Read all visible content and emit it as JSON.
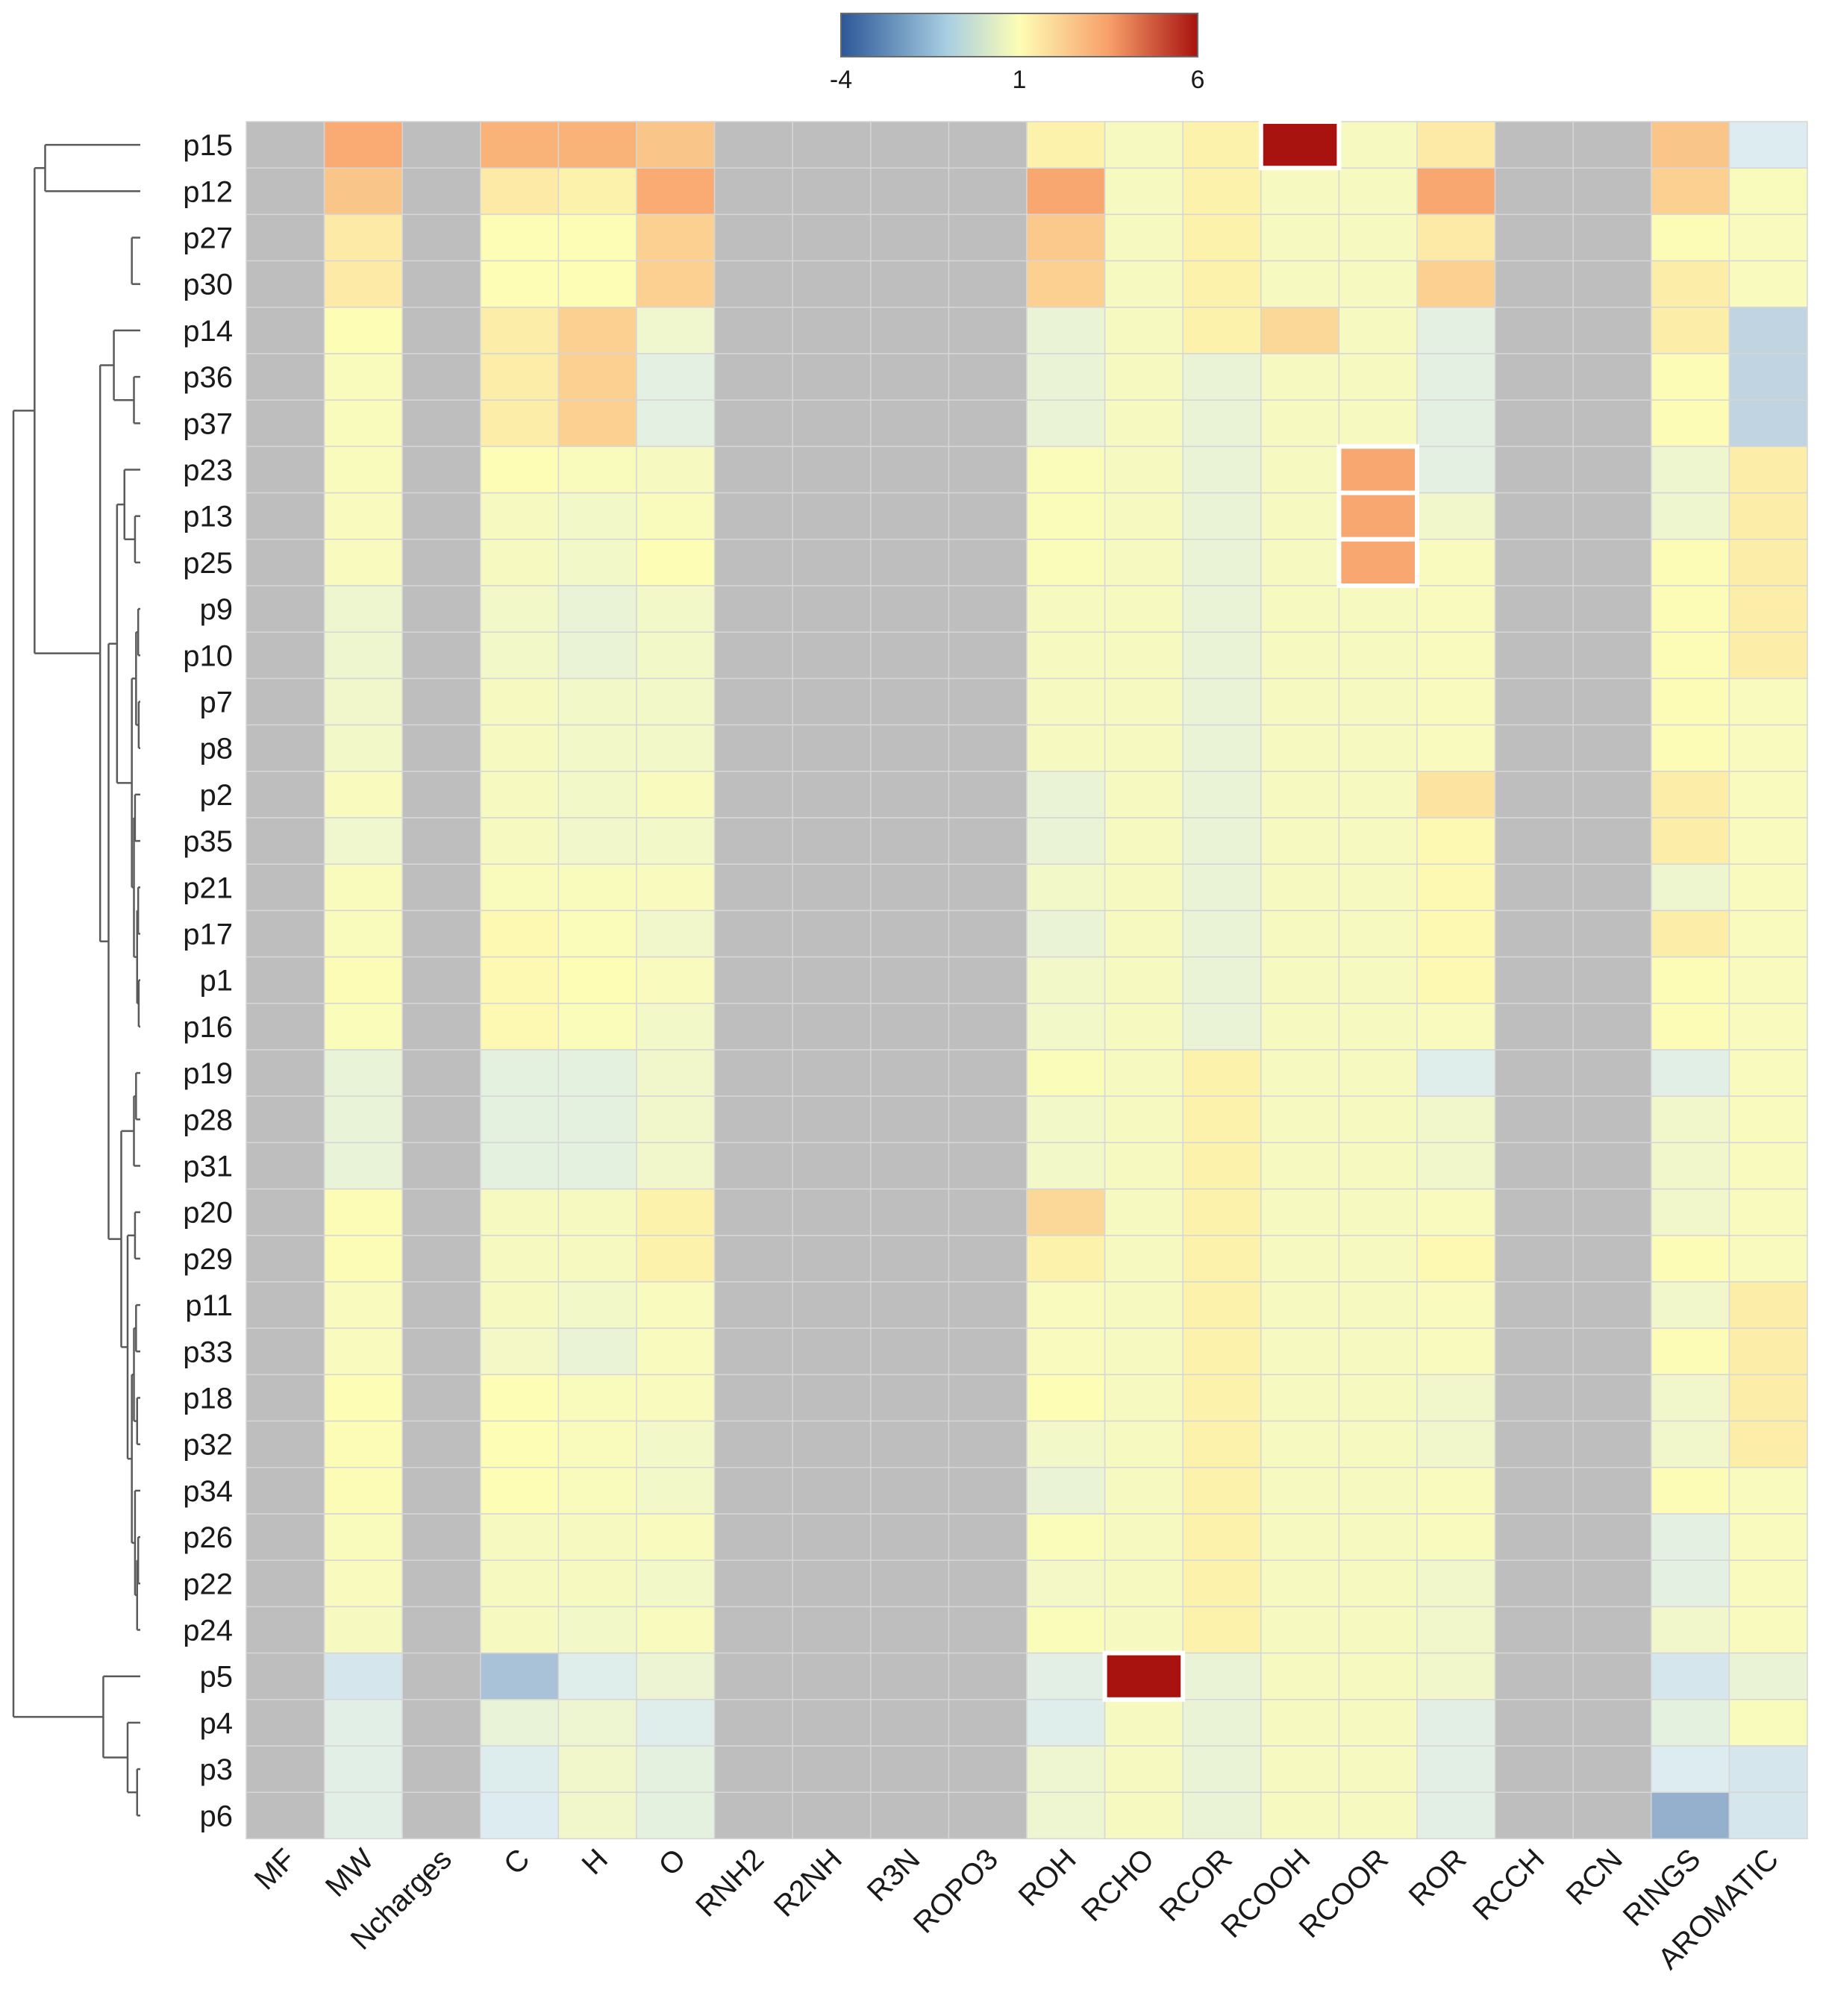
{
  "chart_data": {
    "type": "heatmap",
    "title": "",
    "colormap": {
      "min": -4,
      "mid": 1,
      "max": 6,
      "colors": [
        "#2b5797",
        "#dcecf0",
        "#fdfdb5",
        "#f8a06a",
        "#a8120f"
      ]
    },
    "legend": {
      "ticks": [
        "-4",
        "1",
        "6"
      ],
      "position": "top-center"
    },
    "na_color": "#bebebe",
    "rows": [
      "p15",
      "p12",
      "p27",
      "p30",
      "p14",
      "p36",
      "p37",
      "p23",
      "p13",
      "p25",
      "p9",
      "p10",
      "p7",
      "p8",
      "p2",
      "p35",
      "p21",
      "p17",
      "p1",
      "p16",
      "p19",
      "p28",
      "p31",
      "p20",
      "p29",
      "p11",
      "p33",
      "p18",
      "p32",
      "p34",
      "p26",
      "p22",
      "p24",
      "p5",
      "p4",
      "p3",
      "p6"
    ],
    "columns": [
      "MF",
      "MW",
      "Ncharges",
      "C",
      "H",
      "O",
      "RNH2",
      "R2NH",
      "R3N",
      "ROPO3",
      "ROH",
      "RCHO",
      "RCOR",
      "RCOOH",
      "RCOOR",
      "ROR",
      "RCCH",
      "RCN",
      "RINGS",
      "AROMATIC"
    ],
    "values": [
      [
        null,
        3.2,
        null,
        3.0,
        3.0,
        2.5,
        null,
        null,
        null,
        null,
        1.3,
        0.5,
        1.3,
        6.0,
        0.5,
        1.5,
        null,
        null,
        2.5,
        -1.5
      ],
      [
        null,
        2.5,
        null,
        1.5,
        1.3,
        3.2,
        null,
        null,
        null,
        null,
        3.3,
        0.5,
        1.3,
        0.5,
        0.5,
        3.3,
        null,
        null,
        2.2,
        0.7
      ],
      [
        null,
        1.5,
        null,
        1.0,
        1.0,
        2.2,
        null,
        null,
        null,
        null,
        2.4,
        0.5,
        1.3,
        0.5,
        0.5,
        1.5,
        null,
        null,
        0.9,
        0.6
      ],
      [
        null,
        1.5,
        null,
        1.0,
        1.0,
        2.2,
        null,
        null,
        null,
        null,
        2.2,
        0.5,
        1.3,
        0.5,
        0.5,
        2.2,
        null,
        null,
        1.4,
        0.6
      ],
      [
        null,
        1.0,
        null,
        1.4,
        2.2,
        0.0,
        null,
        null,
        null,
        null,
        -0.4,
        0.5,
        1.3,
        2.0,
        0.5,
        -0.9,
        null,
        null,
        1.4,
        -1.9
      ],
      [
        null,
        0.7,
        null,
        1.4,
        2.2,
        -0.9,
        null,
        null,
        null,
        null,
        -0.4,
        0.5,
        -0.4,
        0.5,
        0.5,
        -0.9,
        null,
        null,
        0.9,
        -1.9
      ],
      [
        null,
        0.7,
        null,
        1.4,
        2.2,
        -0.9,
        null,
        null,
        null,
        null,
        -0.4,
        0.5,
        -0.4,
        0.5,
        0.5,
        -0.9,
        null,
        null,
        0.9,
        -1.9
      ],
      [
        null,
        0.7,
        null,
        1.0,
        0.7,
        0.5,
        null,
        null,
        null,
        null,
        0.8,
        0.5,
        -0.4,
        0.5,
        3.3,
        -0.9,
        null,
        null,
        -0.1,
        1.4
      ],
      [
        null,
        0.6,
        null,
        0.5,
        0.2,
        0.7,
        null,
        null,
        null,
        null,
        0.8,
        0.5,
        -0.4,
        0.5,
        3.3,
        0.1,
        null,
        null,
        -0.1,
        1.4
      ],
      [
        null,
        0.6,
        null,
        0.5,
        0.2,
        1.0,
        null,
        null,
        null,
        null,
        0.8,
        0.5,
        -0.4,
        0.5,
        3.3,
        0.6,
        null,
        null,
        0.9,
        1.4
      ],
      [
        null,
        -0.1,
        null,
        0.2,
        -0.4,
        0.2,
        null,
        null,
        null,
        null,
        0.5,
        0.5,
        -0.4,
        0.5,
        0.5,
        0.6,
        null,
        null,
        0.9,
        1.4
      ],
      [
        null,
        -0.1,
        null,
        0.2,
        -0.4,
        0.2,
        null,
        null,
        null,
        null,
        0.5,
        0.5,
        -0.4,
        0.5,
        0.5,
        0.6,
        null,
        null,
        0.9,
        1.4
      ],
      [
        null,
        0.1,
        null,
        0.5,
        0.2,
        0.2,
        null,
        null,
        null,
        null,
        0.5,
        0.5,
        -0.4,
        0.5,
        0.5,
        0.6,
        null,
        null,
        0.9,
        0.6
      ],
      [
        null,
        0.2,
        null,
        0.5,
        0.2,
        0.2,
        null,
        null,
        null,
        null,
        0.5,
        0.5,
        -0.4,
        0.5,
        0.5,
        0.6,
        null,
        null,
        0.9,
        0.6
      ],
      [
        null,
        0.6,
        null,
        0.5,
        0.2,
        0.6,
        null,
        null,
        null,
        null,
        -0.4,
        0.5,
        -0.4,
        0.5,
        0.5,
        1.7,
        null,
        null,
        1.4,
        0.6
      ],
      [
        null,
        0.0,
        null,
        0.5,
        0.1,
        0.2,
        null,
        null,
        null,
        null,
        -0.4,
        0.5,
        -0.4,
        0.5,
        0.5,
        1.1,
        null,
        null,
        1.4,
        0.6
      ],
      [
        null,
        0.7,
        null,
        0.7,
        0.7,
        0.6,
        null,
        null,
        null,
        null,
        0.2,
        0.5,
        -0.4,
        0.5,
        0.5,
        1.1,
        null,
        null,
        -0.1,
        0.6
      ],
      [
        null,
        0.7,
        null,
        1.1,
        0.8,
        0.1,
        null,
        null,
        null,
        null,
        -0.4,
        0.5,
        -0.4,
        0.5,
        0.5,
        1.1,
        null,
        null,
        1.4,
        0.6
      ],
      [
        null,
        0.9,
        null,
        1.1,
        1.0,
        0.6,
        null,
        null,
        null,
        null,
        0.2,
        0.5,
        -0.4,
        0.5,
        0.5,
        1.1,
        null,
        null,
        0.9,
        0.6
      ],
      [
        null,
        0.8,
        null,
        1.1,
        0.8,
        0.2,
        null,
        null,
        null,
        null,
        0.2,
        0.5,
        -0.4,
        0.5,
        0.5,
        0.6,
        null,
        null,
        0.9,
        0.6
      ],
      [
        null,
        -0.5,
        null,
        -0.8,
        -0.8,
        0.1,
        null,
        null,
        null,
        null,
        0.8,
        0.5,
        1.3,
        0.5,
        0.5,
        -1.3,
        null,
        null,
        -1.1,
        0.6
      ],
      [
        null,
        -0.5,
        null,
        -0.8,
        -0.8,
        0.1,
        null,
        null,
        null,
        null,
        0.2,
        0.5,
        1.3,
        0.5,
        0.5,
        0.1,
        null,
        null,
        0.1,
        0.6
      ],
      [
        null,
        -0.5,
        null,
        -0.8,
        -0.8,
        0.1,
        null,
        null,
        null,
        null,
        0.2,
        0.5,
        1.3,
        0.5,
        0.5,
        0.1,
        null,
        null,
        0.1,
        0.6
      ],
      [
        null,
        0.9,
        null,
        0.5,
        0.5,
        1.3,
        null,
        null,
        null,
        null,
        2.0,
        0.5,
        1.3,
        0.5,
        0.5,
        0.6,
        null,
        null,
        0.1,
        0.6
      ],
      [
        null,
        0.9,
        null,
        0.5,
        0.5,
        1.3,
        null,
        null,
        null,
        null,
        1.3,
        0.5,
        1.3,
        0.5,
        0.5,
        1.1,
        null,
        null,
        0.9,
        0.6
      ],
      [
        null,
        0.6,
        null,
        0.5,
        0.2,
        0.6,
        null,
        null,
        null,
        null,
        0.6,
        0.5,
        1.3,
        0.5,
        0.5,
        0.6,
        null,
        null,
        0.1,
        1.4
      ],
      [
        null,
        0.6,
        null,
        0.3,
        -0.4,
        0.6,
        null,
        null,
        null,
        null,
        0.6,
        0.5,
        1.3,
        0.5,
        0.5,
        0.6,
        null,
        null,
        0.9,
        1.4
      ],
      [
        null,
        1.0,
        null,
        1.0,
        0.7,
        0.6,
        null,
        null,
        null,
        null,
        1.0,
        0.5,
        1.3,
        0.5,
        0.5,
        0.1,
        null,
        null,
        0.1,
        1.4
      ],
      [
        null,
        0.9,
        null,
        1.0,
        0.7,
        0.2,
        null,
        null,
        null,
        null,
        0.2,
        0.5,
        1.3,
        0.5,
        0.5,
        0.1,
        null,
        null,
        0.1,
        1.4
      ],
      [
        null,
        0.9,
        null,
        1.0,
        0.7,
        0.2,
        null,
        null,
        null,
        null,
        -0.4,
        0.5,
        1.3,
        0.5,
        0.5,
        0.6,
        null,
        null,
        0.9,
        0.6
      ],
      [
        null,
        0.7,
        null,
        0.5,
        0.5,
        0.6,
        null,
        null,
        null,
        null,
        0.8,
        0.5,
        1.3,
        0.5,
        0.5,
        0.6,
        null,
        null,
        -0.9,
        0.6
      ],
      [
        null,
        0.6,
        null,
        0.5,
        0.5,
        0.2,
        null,
        null,
        null,
        null,
        0.3,
        0.5,
        1.3,
        0.5,
        0.5,
        0.1,
        null,
        null,
        -0.9,
        0.6
      ],
      [
        null,
        0.5,
        null,
        0.5,
        0.2,
        0.6,
        null,
        null,
        null,
        null,
        0.8,
        0.5,
        1.3,
        0.5,
        0.5,
        0.1,
        null,
        null,
        0.1,
        0.6
      ],
      [
        null,
        -1.6,
        null,
        -2.2,
        -1.3,
        -0.3,
        null,
        null,
        null,
        null,
        -1.0,
        6.0,
        -0.4,
        0.5,
        0.5,
        0.1,
        null,
        null,
        -1.6,
        -0.4
      ],
      [
        null,
        -1.1,
        null,
        -0.5,
        -0.2,
        -1.3,
        null,
        null,
        null,
        null,
        -1.3,
        0.5,
        -0.4,
        0.5,
        0.5,
        -1.0,
        null,
        null,
        -0.8,
        0.7
      ],
      [
        null,
        -1.1,
        null,
        -1.4,
        0.1,
        -0.8,
        null,
        null,
        null,
        null,
        -0.2,
        0.5,
        -0.4,
        0.5,
        0.5,
        -1.0,
        null,
        null,
        -1.5,
        -1.6
      ],
      [
        null,
        -1.1,
        null,
        -1.5,
        0.1,
        -0.8,
        null,
        null,
        null,
        null,
        -0.2,
        0.5,
        -0.4,
        0.5,
        0.5,
        -1.0,
        null,
        null,
        -2.5,
        -1.6
      ]
    ],
    "highlighted_cells": [
      {
        "row": "p15",
        "column": "RCOOH"
      },
      {
        "row": "p5",
        "column": "RCHO"
      },
      {
        "row": "p23",
        "column": "RCOOR"
      },
      {
        "row": "p13",
        "column": "RCOOR"
      },
      {
        "row": "p25",
        "column": "RCOOR"
      }
    ],
    "dendrogram": {
      "row_order": [
        "p15",
        "p12",
        "p27",
        "p30",
        "p14",
        "p36",
        "p37",
        "p23",
        "p13",
        "p25",
        "p9",
        "p10",
        "p7",
        "p8",
        "p2",
        "p35",
        "p21",
        "p17",
        "p1",
        "p16",
        "p19",
        "p28",
        "p31",
        "p20",
        "p29",
        "p11",
        "p33",
        "p18",
        "p32",
        "p34",
        "p26",
        "p22",
        "p24",
        "p5",
        "p4",
        "p3",
        "p6"
      ],
      "merges": [
        [
          0,
          1,
          0.9
        ],
        [
          2,
          3,
          0.08
        ],
        [
          1,
          3,
          0.7
        ],
        [
          5,
          6,
          0.06
        ],
        [
          4,
          6,
          0.25
        ],
        [
          8,
          9,
          0.05
        ],
        [
          7,
          9,
          0.15
        ],
        [
          10,
          11,
          0.02
        ],
        [
          12,
          13,
          0.015
        ],
        [
          10,
          13,
          0.04
        ],
        [
          14,
          15,
          0.05
        ],
        [
          16,
          17,
          0.02
        ],
        [
          18,
          19,
          0.015
        ],
        [
          16,
          19,
          0.03
        ],
        [
          14,
          19,
          0.06
        ],
        [
          10,
          19,
          0.08
        ],
        [
          7,
          19,
          0.22
        ],
        [
          20,
          21,
          0.04
        ],
        [
          20,
          22,
          0.06
        ],
        [
          23,
          24,
          0.05
        ],
        [
          25,
          26,
          0.04
        ],
        [
          27,
          28,
          0.03
        ],
        [
          25,
          28,
          0.06
        ],
        [
          30,
          31,
          0.02
        ],
        [
          30,
          32,
          0.03
        ],
        [
          29,
          32,
          0.05
        ],
        [
          25,
          32,
          0.08
        ],
        [
          23,
          32,
          0.12
        ],
        [
          20,
          32,
          0.18
        ],
        [
          7,
          32,
          0.3
        ],
        [
          4,
          32,
          0.38
        ],
        [
          0,
          32,
          1.0
        ],
        [
          35,
          36,
          0.03
        ],
        [
          34,
          36,
          0.12
        ],
        [
          33,
          36,
          0.35
        ],
        [
          0,
          36,
          1.2
        ]
      ]
    }
  }
}
